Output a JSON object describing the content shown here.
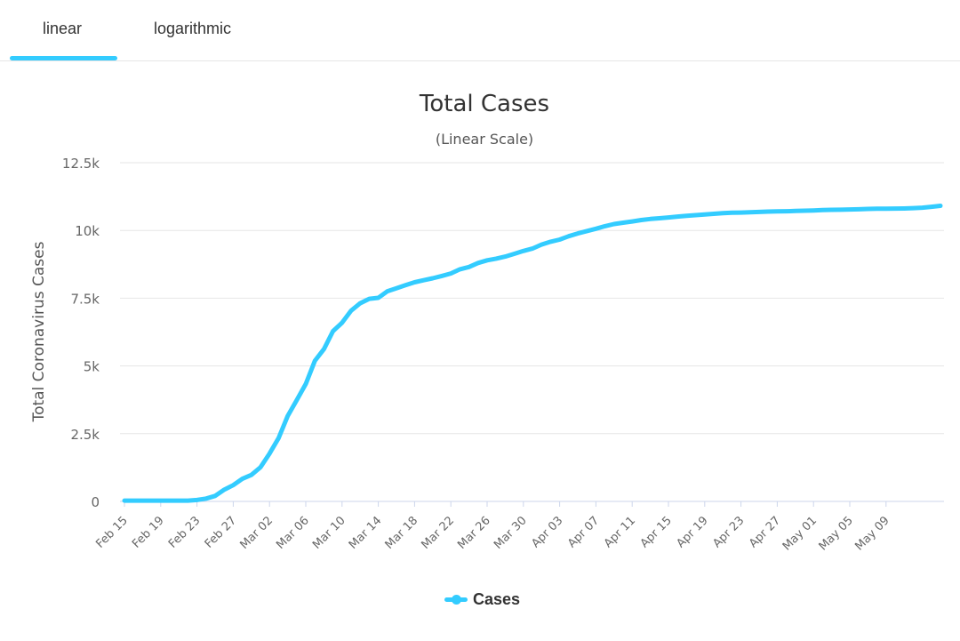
{
  "tabs": [
    {
      "label": "linear",
      "active": true
    },
    {
      "label": "logarithmic",
      "active": false
    }
  ],
  "colors": {
    "series": "#33ccff",
    "grid": "#e6e6e6",
    "text": "#333333",
    "axis_text": "#666666"
  },
  "chart_data": {
    "type": "line",
    "title": "Total Cases",
    "subtitle": "(Linear Scale)",
    "ylabel": "Total Coronavirus Cases",
    "xlabel": "",
    "ylim": [
      0,
      12500
    ],
    "yticks": [
      0,
      2500,
      5000,
      7500,
      10000,
      12500
    ],
    "ytick_labels": [
      "0",
      "2.5k",
      "5k",
      "7.5k",
      "10k",
      "12.5k"
    ],
    "xtick_labels": [
      "Feb 15",
      "Feb 19",
      "Feb 23",
      "Feb 27",
      "Mar 02",
      "Mar 06",
      "Mar 10",
      "Mar 14",
      "Mar 18",
      "Mar 22",
      "Mar 26",
      "Mar 30",
      "Apr 03",
      "Apr 07",
      "Apr 11",
      "Apr 15",
      "Apr 19",
      "Apr 23",
      "Apr 27",
      "May 01",
      "May 05",
      "May 09"
    ],
    "grid": true,
    "legend_position": "bottom-center",
    "series": [
      {
        "name": "Cases",
        "color": "#33ccff",
        "start_date": "Feb 15",
        "values": [
          28,
          28,
          29,
          29,
          29,
          29,
          30,
          31,
          51,
          104,
          204,
          433,
          602,
          833,
          977,
          1261,
          1766,
          2337,
          3150,
          3736,
          4335,
          5186,
          5621,
          6284,
          6593,
          7041,
          7313,
          7478,
          7513,
          7755,
          7869,
          7979,
          8086,
          8162,
          8236,
          8320,
          8413,
          8565,
          8652,
          8799,
          8897,
          8961,
          9037,
          9137,
          9241,
          9332,
          9478,
          9583,
          9661,
          9786,
          9887,
          9976,
          10062,
          10156,
          10237,
          10284,
          10331,
          10384,
          10423,
          10450,
          10480,
          10512,
          10537,
          10564,
          10591,
          10613,
          10635,
          10653,
          10661,
          10674,
          10683,
          10694,
          10702,
          10708,
          10718,
          10728,
          10738,
          10752,
          10761,
          10765,
          10774,
          10780,
          10793,
          10801,
          10804,
          10806,
          10810,
          10822,
          10840,
          10874,
          10909
        ]
      }
    ]
  }
}
